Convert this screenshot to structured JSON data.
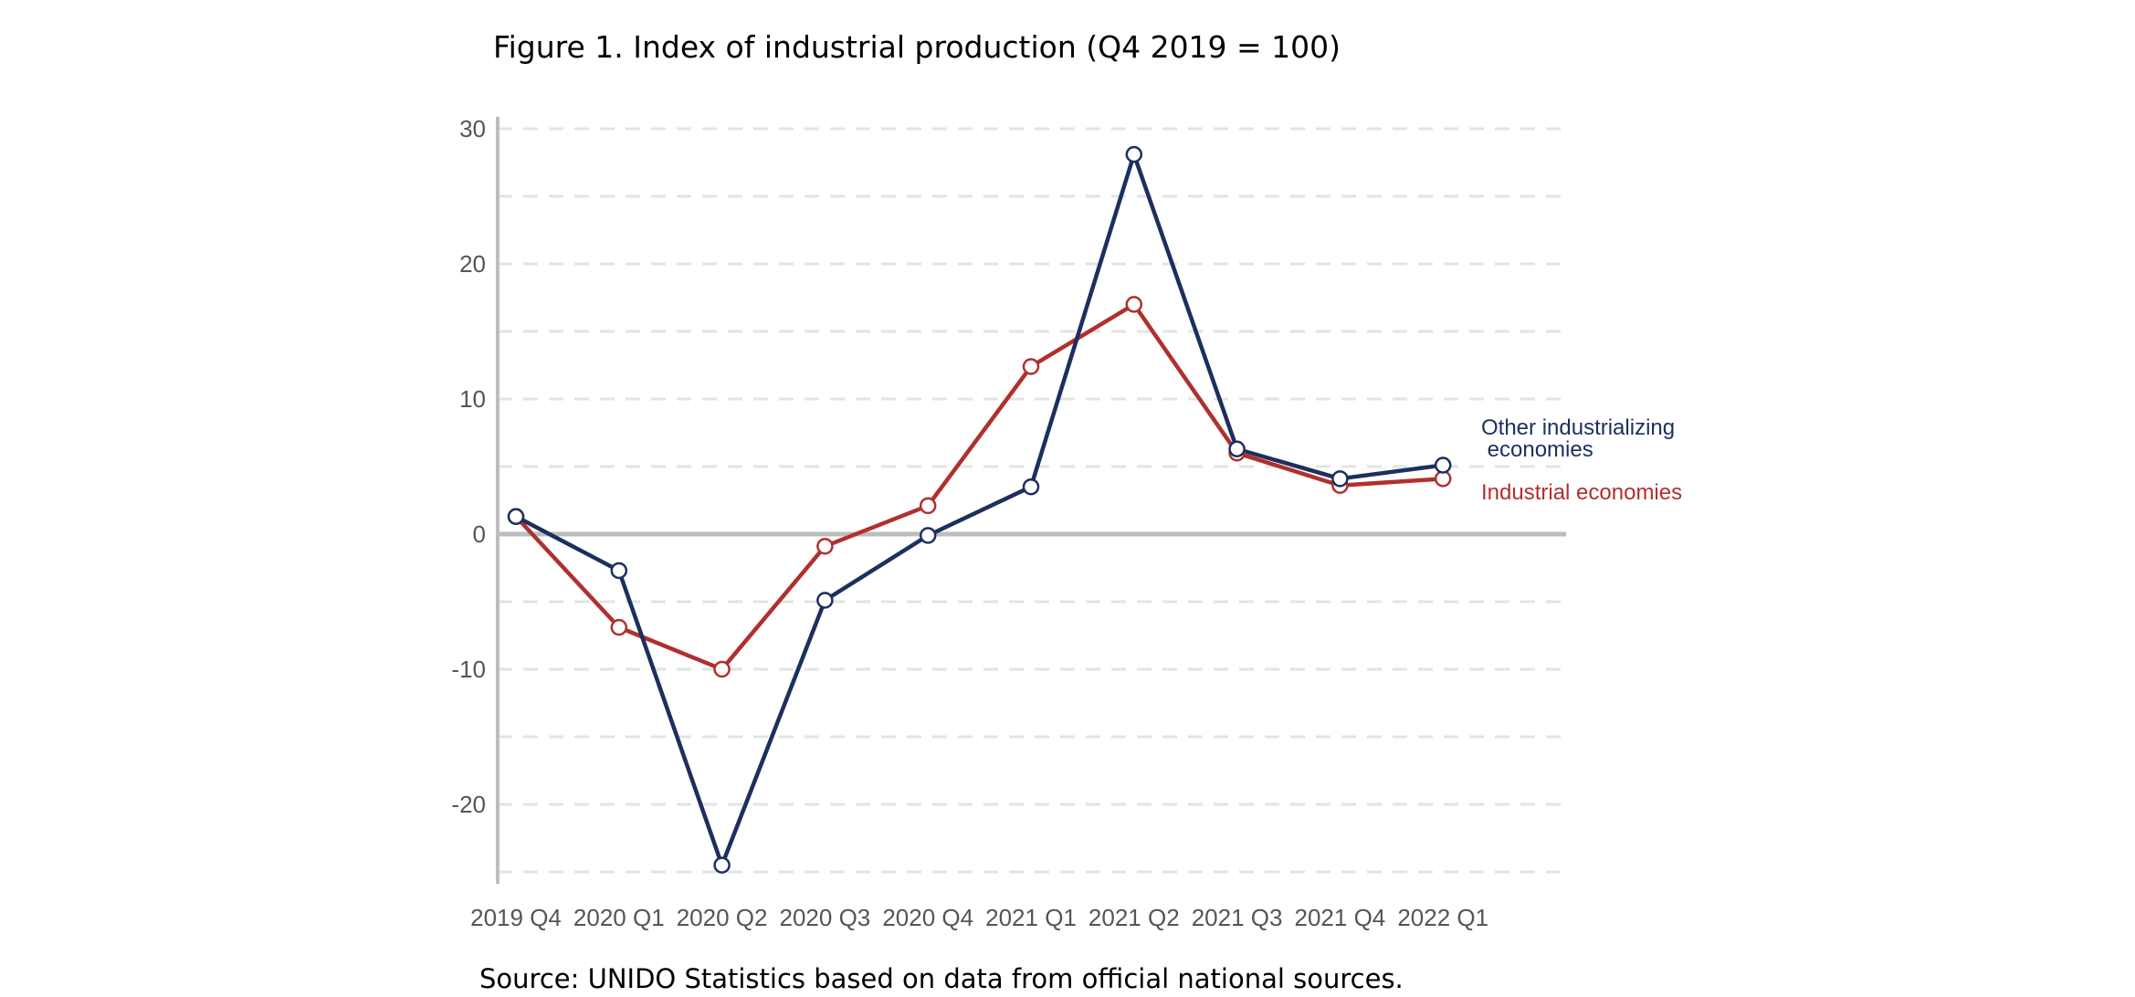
{
  "figure": {
    "title": "Figure 1. Index of industrial production (Q4 2019 = 100)",
    "source": "Source: UNIDO Statistics based on data from official national sources."
  },
  "chart_data": {
    "type": "line",
    "title": "Figure 1. Index of industrial production (Q4 2019 = 100)",
    "xlabel": "",
    "ylabel": "",
    "categories": [
      "2019 Q4",
      "2020 Q1",
      "2020 Q2",
      "2020 Q3",
      "2020 Q4",
      "2021 Q1",
      "2021 Q2",
      "2021 Q3",
      "2021 Q4",
      "2022 Q1"
    ],
    "y_ticks": [
      30,
      20,
      10,
      0,
      -10,
      -20
    ],
    "ylim": [
      -25,
      30
    ],
    "grid": "dashed horizontal",
    "legend": "direct labels at right end of lines",
    "series": [
      {
        "name": "Other industrializing economies",
        "label_lines": [
          "Other industrializing",
          " economies"
        ],
        "color": "#1c2f5e",
        "values": [
          1.3,
          -2.7,
          -24.5,
          -4.9,
          -0.1,
          3.5,
          28.1,
          6.3,
          4.1,
          5.1
        ]
      },
      {
        "name": "Industrial economies",
        "label_lines": [
          "Industrial economies"
        ],
        "color": "#b0302e",
        "values": [
          1.3,
          -6.9,
          -10.0,
          -0.9,
          2.1,
          12.4,
          17.0,
          6.0,
          3.6,
          4.1
        ]
      }
    ],
    "zero_line_color": "#bdbdbd",
    "axis_color": "#bdbdbd",
    "grid_color": "#e3e3e3"
  }
}
